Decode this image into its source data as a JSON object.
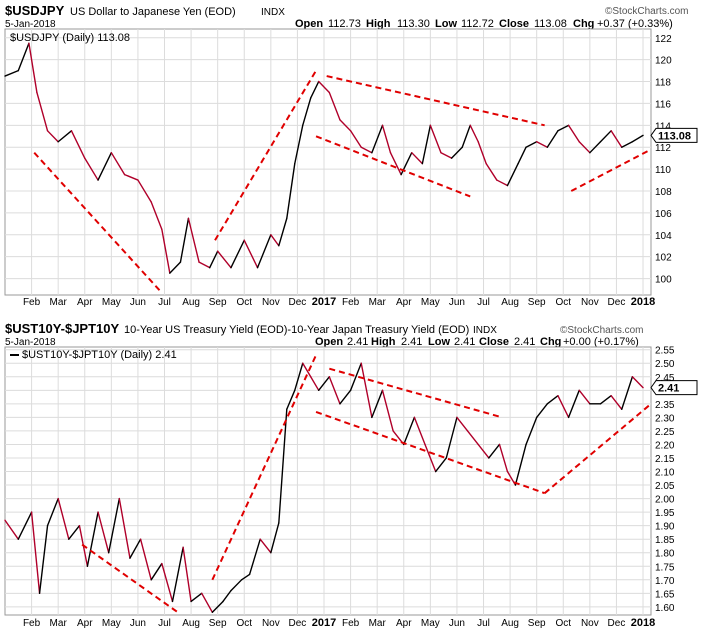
{
  "colors": {
    "up": "#000000",
    "down": "#b0002a",
    "trend": "#e00000",
    "grid": "#dcdcdc",
    "frame": "#9a9a9a",
    "text": "#000000"
  },
  "watermark": "©StockCharts.com",
  "chart_data": [
    {
      "type": "line",
      "symbol": "$USDJPY",
      "description": "US Dollar to Japanese Yen (EOD)",
      "exchange": "INDX",
      "date": "5-Jan-2018",
      "legend": "$USDJPY (Daily) 113.08",
      "quote": {
        "open_label": "Open",
        "open": "112.73",
        "high_label": "High",
        "high": "113.30",
        "low_label": "Low",
        "low": "112.72",
        "close_label": "Close",
        "close": "113.08",
        "chg_label": "Chg",
        "chg": "+0.37 (+0.33%)"
      },
      "last_value": "113.08",
      "x_labels": [
        "Feb",
        "Mar",
        "Apr",
        "May",
        "Jun",
        "Jul",
        "Aug",
        "Sep",
        "Oct",
        "Nov",
        "Dec",
        "2017",
        "Feb",
        "Mar",
        "Apr",
        "May",
        "Jun",
        "Jul",
        "Aug",
        "Sep",
        "Oct",
        "Nov",
        "Dec",
        "2018"
      ],
      "y_ticks": [
        "100",
        "102",
        "104",
        "106",
        "108",
        "110",
        "112",
        "114",
        "116",
        "118",
        "120",
        "122"
      ],
      "ylim": [
        98.5,
        122.8
      ],
      "x_range": [
        0,
        24.3
      ],
      "series": [
        {
          "x": [
            0,
            0.5,
            0.9,
            1.2,
            1.6,
            2.0,
            2.5,
            3.0,
            3.5,
            4.0,
            4.5,
            5.0,
            5.5,
            5.9,
            6.2,
            6.6,
            6.9,
            7.3,
            7.7,
            8.0,
            8.5,
            9.0,
            9.5,
            10.0,
            10.3,
            10.6,
            10.9,
            11.2,
            11.5,
            11.8,
            12.2,
            12.6,
            13.0,
            13.4,
            13.8,
            14.2,
            14.5,
            14.9,
            15.3,
            15.7,
            16.0,
            16.4,
            16.8,
            17.2,
            17.5,
            17.8,
            18.1,
            18.5,
            18.9,
            19.3,
            19.6,
            20.0,
            20.4,
            20.8,
            21.2,
            21.6,
            22.0,
            22.4,
            22.8,
            23.2,
            23.6,
            24.0
          ],
          "values": [
            118.5,
            119.0,
            121.5,
            117.0,
            113.5,
            112.5,
            113.5,
            111.0,
            109.0,
            111.5,
            109.5,
            109.0,
            107.0,
            104.5,
            100.5,
            101.5,
            105.5,
            101.5,
            101.0,
            102.5,
            101.0,
            103.5,
            101.0,
            104.0,
            103.0,
            105.5,
            110.5,
            114.0,
            116.5,
            118.0,
            117.0,
            114.5,
            113.5,
            112.0,
            111.5,
            114.0,
            111.5,
            109.5,
            111.5,
            110.5,
            114.0,
            111.5,
            111.0,
            112.0,
            114.0,
            112.5,
            110.5,
            109.0,
            108.5,
            110.5,
            112.0,
            112.5,
            112.0,
            113.5,
            114.0,
            112.5,
            111.5,
            112.5,
            113.5,
            112.0,
            112.5,
            113.08
          ]
        }
      ],
      "trendlines": [
        {
          "x": [
            1.1,
            5.9
          ],
          "y": [
            111.5,
            98.7
          ]
        },
        {
          "x": [
            7.9,
            11.7
          ],
          "y": [
            103.5,
            119.0
          ]
        },
        {
          "x": [
            12.1,
            20.3
          ],
          "y": [
            118.5,
            114.0
          ]
        },
        {
          "x": [
            11.7,
            17.5
          ],
          "y": [
            113.0,
            107.5
          ]
        },
        {
          "x": [
            21.3,
            24.3
          ],
          "y": [
            108.0,
            111.8
          ]
        }
      ]
    },
    {
      "type": "line",
      "symbol": "$UST10Y-$JPT10Y",
      "description": "10-Year US Treasury Yield (EOD)-10-Year Japan Treasury Yield (EOD)",
      "exchange": "INDX",
      "date": "5-Jan-2018",
      "legend": "$UST10Y-$JPT10Y (Daily) 2.41",
      "quote": {
        "open_label": "Open",
        "open": "2.41",
        "high_label": "High",
        "high": "2.41",
        "low_label": "Low",
        "low": "2.41",
        "close_label": "Close",
        "close": "2.41",
        "chg_label": "Chg",
        "chg": "+0.00 (+0.17%)"
      },
      "last_value": "2.41",
      "x_labels": [
        "Feb",
        "Mar",
        "Apr",
        "May",
        "Jun",
        "Jul",
        "Aug",
        "Sep",
        "Oct",
        "Nov",
        "Dec",
        "2017",
        "Feb",
        "Mar",
        "Apr",
        "May",
        "Jun",
        "Jul",
        "Aug",
        "Sep",
        "Oct",
        "Nov",
        "Dec",
        "2018"
      ],
      "y_ticks": [
        "1.60",
        "1.65",
        "1.70",
        "1.75",
        "1.80",
        "1.85",
        "1.90",
        "1.95",
        "2.00",
        "2.05",
        "2.10",
        "2.15",
        "2.20",
        "2.25",
        "2.30",
        "2.35",
        "2.40",
        "2.45",
        "2.50",
        "2.55"
      ],
      "ylim": [
        1.57,
        2.56
      ],
      "x_range": [
        0,
        24.3
      ],
      "series": [
        {
          "x": [
            0,
            0.5,
            1.0,
            1.3,
            1.6,
            2.0,
            2.4,
            2.8,
            3.1,
            3.5,
            3.9,
            4.3,
            4.7,
            5.1,
            5.5,
            5.9,
            6.3,
            6.7,
            7.0,
            7.4,
            7.8,
            8.2,
            8.5,
            8.9,
            9.2,
            9.6,
            10.0,
            10.3,
            10.6,
            10.9,
            11.2,
            11.5,
            11.8,
            12.2,
            12.6,
            13.0,
            13.4,
            13.8,
            14.2,
            14.6,
            15.0,
            15.4,
            15.8,
            16.2,
            16.6,
            17.0,
            17.4,
            17.8,
            18.2,
            18.6,
            18.9,
            19.2,
            19.6,
            20.0,
            20.4,
            20.8,
            21.2,
            21.6,
            22.0,
            22.4,
            22.8,
            23.2,
            23.6,
            24.0
          ],
          "values": [
            1.92,
            1.85,
            1.95,
            1.65,
            1.9,
            2.0,
            1.85,
            1.9,
            1.75,
            1.95,
            1.8,
            2.0,
            1.78,
            1.85,
            1.7,
            1.76,
            1.62,
            1.82,
            1.62,
            1.65,
            1.58,
            1.62,
            1.66,
            1.7,
            1.72,
            1.85,
            1.8,
            1.91,
            2.33,
            2.4,
            2.5,
            2.45,
            2.4,
            2.45,
            2.35,
            2.4,
            2.5,
            2.3,
            2.4,
            2.25,
            2.2,
            2.3,
            2.2,
            2.1,
            2.15,
            2.3,
            2.25,
            2.2,
            2.15,
            2.2,
            2.1,
            2.05,
            2.2,
            2.3,
            2.35,
            2.38,
            2.3,
            2.4,
            2.35,
            2.35,
            2.38,
            2.33,
            2.45,
            2.41
          ]
        }
      ],
      "trendlines": [
        {
          "x": [
            2.9,
            6.5
          ],
          "y": [
            1.83,
            1.58
          ]
        },
        {
          "x": [
            7.8,
            11.7
          ],
          "y": [
            1.7,
            2.53
          ]
        },
        {
          "x": [
            12.2,
            18.7
          ],
          "y": [
            2.48,
            2.3
          ]
        },
        {
          "x": [
            11.7,
            20.3
          ],
          "y": [
            2.32,
            2.02
          ]
        },
        {
          "x": [
            20.3,
            24.3
          ],
          "y": [
            2.02,
            2.35
          ]
        }
      ]
    }
  ]
}
